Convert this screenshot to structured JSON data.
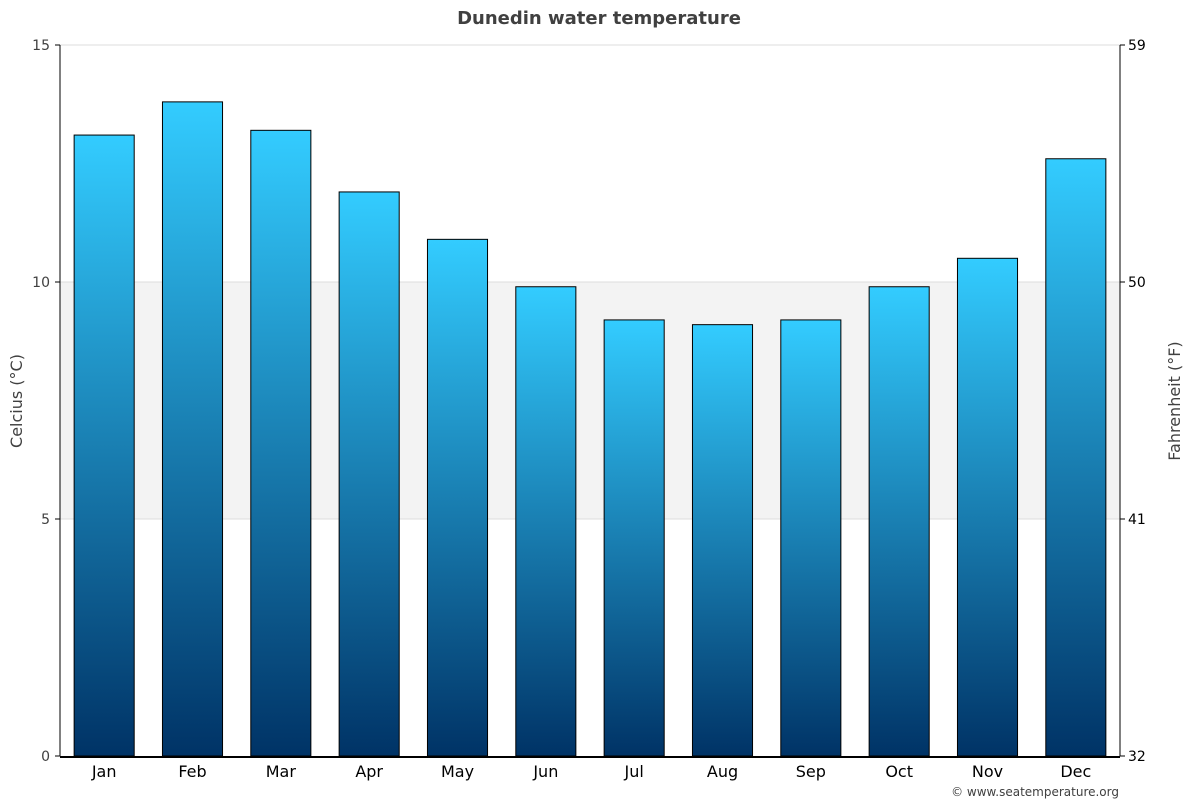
{
  "chart_data": {
    "type": "bar",
    "title": "Dunedin water temperature",
    "categories": [
      "Jan",
      "Feb",
      "Mar",
      "Apr",
      "May",
      "Jun",
      "Jul",
      "Aug",
      "Sep",
      "Oct",
      "Nov",
      "Dec"
    ],
    "values": [
      13.1,
      13.8,
      13.2,
      11.9,
      10.9,
      9.9,
      9.2,
      9.1,
      9.2,
      9.9,
      10.5,
      12.6
    ],
    "ylabel": "Celcius (°C)",
    "ylabel_right": "Fahrenheit (°F)",
    "ylim": [
      0,
      15
    ],
    "yticks": [
      "0",
      "5",
      "10",
      "15"
    ],
    "yticks_right": [
      "32",
      "41",
      "50",
      "59"
    ],
    "band_range": [
      5,
      10
    ],
    "colors": {
      "bar_top": "#33ccff",
      "bar_bottom": "#003366",
      "bar_outline": "#000000",
      "band": "#f3f3f3",
      "grid": "#dddddd"
    }
  },
  "credit": "© www.seatemperature.org"
}
